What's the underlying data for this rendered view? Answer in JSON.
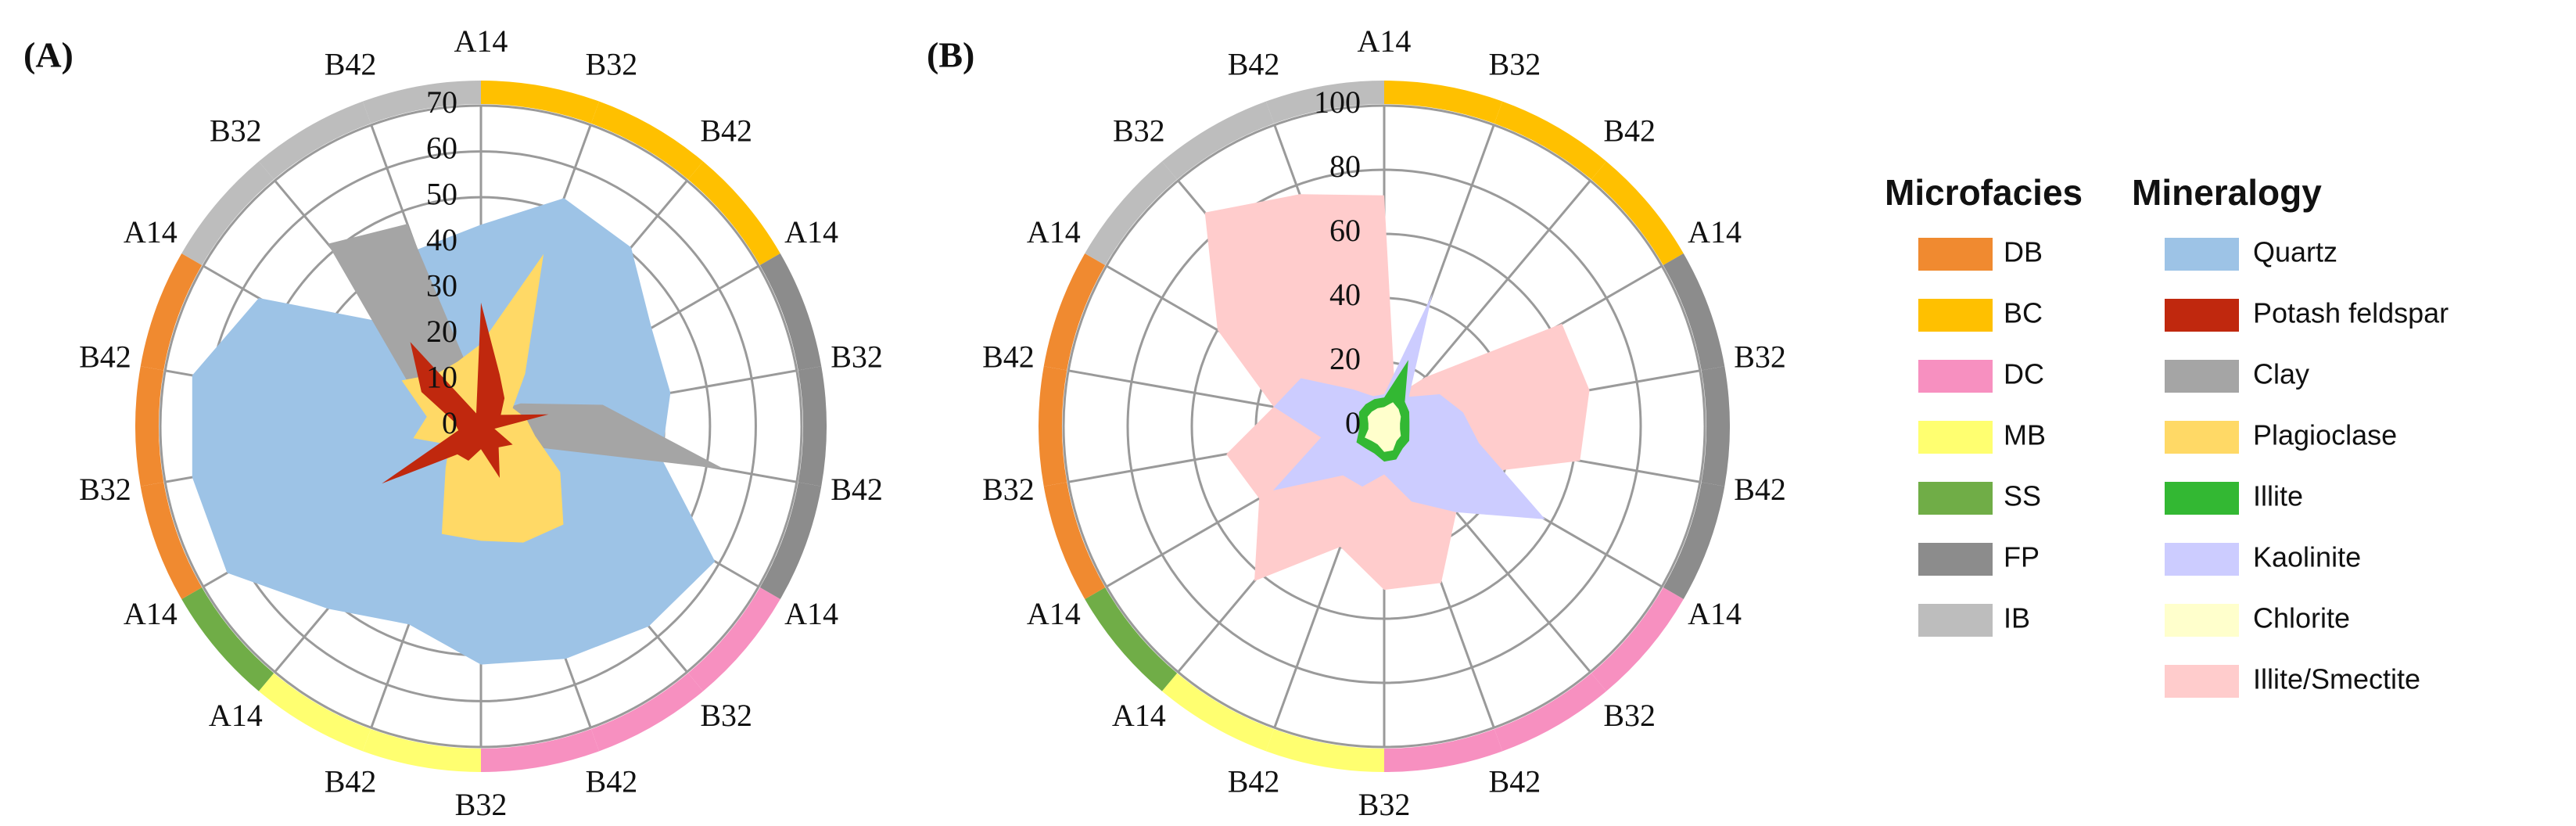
{
  "chart_data": [
    {
      "type": "radar",
      "panel_label": "(A)",
      "categories": [
        "A14",
        "B32",
        "B42",
        "A14",
        "B32",
        "B42",
        "A14",
        "B32",
        "B42",
        "B32",
        "B42",
        "A14",
        "A14",
        "B32",
        "B42",
        "A14",
        "B32",
        "B42"
      ],
      "groups": [
        "BC",
        "BC",
        "BC",
        "FP",
        "FP",
        "FP",
        "DC",
        "DC",
        "DC",
        "MB",
        "MB",
        "SS",
        "DB",
        "DB",
        "DB",
        "IB",
        "IB",
        "IB"
      ],
      "rlim": [
        0,
        70
      ],
      "rticks": [
        0,
        10,
        20,
        30,
        40,
        50,
        60,
        70
      ],
      "grid": true,
      "series": [
        {
          "name": "Quartz",
          "color": "#9dc3e6",
          "values": [
            44,
            53,
            51,
            43,
            42,
            40,
            59,
            57,
            54,
            52,
            46,
            52,
            64,
            64,
            64,
            56,
            29,
            41
          ]
        },
        {
          "name": "Potash feldspar",
          "color": "#c0280e",
          "values": [
            27,
            12,
            8,
            5,
            15,
            3,
            8,
            6,
            12,
            5,
            8,
            8,
            25,
            5,
            6,
            15,
            24,
            3
          ]
        },
        {
          "name": "Clay",
          "color": "#a5a5a5",
          "values": [
            6,
            5,
            4,
            10,
            27,
            54,
            8,
            4,
            3,
            5,
            20,
            6,
            4,
            3,
            6,
            18,
            52,
            47
          ]
        },
        {
          "name": "Plagioclase",
          "color": "#ffd966",
          "values": [
            18,
            40,
            15,
            8,
            10,
            12,
            20,
            28,
            27,
            25,
            25,
            12,
            8,
            15,
            12,
            20,
            15,
            15
          ]
        }
      ]
    },
    {
      "type": "radar",
      "panel_label": "(B)",
      "categories": [
        "A14",
        "B32",
        "B42",
        "A14",
        "B32",
        "B42",
        "A14",
        "B32",
        "B42",
        "B32",
        "B42",
        "A14",
        "A14",
        "B32",
        "B42",
        "A14",
        "B32",
        "B42"
      ],
      "groups": [
        "BC",
        "BC",
        "BC",
        "FP",
        "FP",
        "FP",
        "DC",
        "DC",
        "DC",
        "MB",
        "MB",
        "SS",
        "DB",
        "DB",
        "DB",
        "IB",
        "IB",
        "IB"
      ],
      "rlim": [
        0,
        100
      ],
      "rticks": [
        0,
        20,
        40,
        60,
        80,
        100
      ],
      "grid": true,
      "series": [
        {
          "name": "Illite",
          "color": "#33b833",
          "values": [
            9,
            22,
            10,
            9,
            8,
            8,
            9,
            9,
            11,
            11,
            9,
            9,
            10,
            8,
            8,
            9,
            9,
            9
          ]
        },
        {
          "name": "Kaolinite",
          "color": "#ccccff",
          "values": [
            10,
            44,
            12,
            20,
            25,
            30,
            58,
            35,
            25,
            15,
            20,
            20,
            40,
            20,
            35,
            30,
            15,
            10
          ]
        },
        {
          "name": "Chlorite",
          "color": "#ffffcc",
          "values": [
            6,
            8,
            7,
            6,
            5,
            5,
            6,
            6,
            8,
            8,
            6,
            6,
            7,
            5,
            5,
            6,
            6,
            6
          ]
        },
        {
          "name": "Illite/Smectite",
          "color": "#ffcccc",
          "values": [
            72,
            10,
            20,
            64,
            65,
            62,
            30,
            35,
            52,
            51,
            40,
            63,
            45,
            50,
            35,
            60,
            87,
            77
          ]
        }
      ]
    }
  ],
  "microfacies": {
    "title": "Microfacies",
    "groups": [
      {
        "name": "DB",
        "color": "#f08a30"
      },
      {
        "name": "BC",
        "color": "#ffc000"
      },
      {
        "name": "DC",
        "color": "#f790c0"
      },
      {
        "name": "MB",
        "color": "#ffff70"
      },
      {
        "name": "SS",
        "color": "#70ad47"
      },
      {
        "name": "FP",
        "color": "#8c8c8c"
      },
      {
        "name": "IB",
        "color": "#bdbdbd"
      }
    ]
  },
  "mineralogy_title": "Mineralogy"
}
